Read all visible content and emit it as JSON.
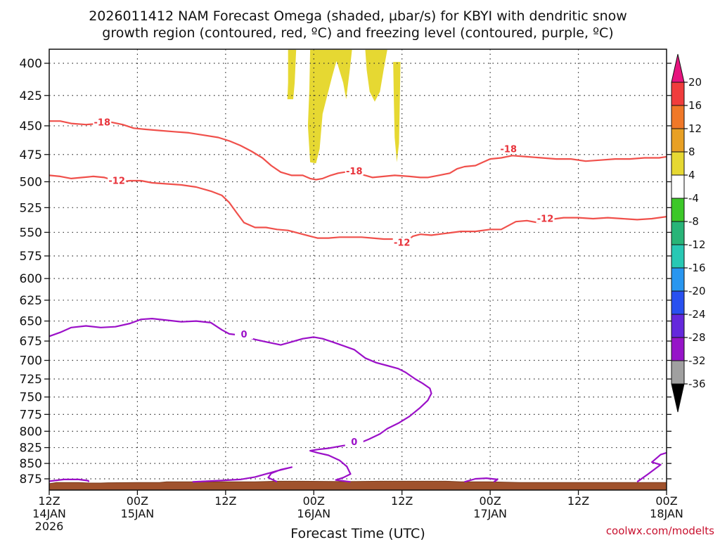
{
  "chart_data": {
    "type": "time-height cross-section",
    "title_line1": "2026011412 NAM Forecast Omega (shaded, µbar/s) for KBYI with dendritic snow",
    "title_line2": "growth region (contoured, red, ºC) and freezing level (contoured, purple, ºC)",
    "xlabel": "Forecast Time (UTC)",
    "credit": "coolwx.com/modelts",
    "x_range_hours": [
      0,
      84
    ],
    "y_range_mb": [
      880,
      390
    ],
    "y_ticks": [
      400,
      425,
      450,
      475,
      500,
      525,
      550,
      575,
      600,
      625,
      650,
      675,
      700,
      725,
      750,
      775,
      800,
      825,
      850,
      875
    ],
    "x_ticks": [
      {
        "hour": 0,
        "line1": "12Z",
        "line2": "14JAN",
        "line3": "2026"
      },
      {
        "hour": 12,
        "line1": "00Z",
        "line2": "15JAN",
        "line3": ""
      },
      {
        "hour": 24,
        "line1": "12Z",
        "line2": "",
        "line3": ""
      },
      {
        "hour": 36,
        "line1": "00Z",
        "line2": "16JAN",
        "line3": ""
      },
      {
        "hour": 48,
        "line1": "12Z",
        "line2": "",
        "line3": ""
      },
      {
        "hour": 60,
        "line1": "00Z",
        "line2": "17JAN",
        "line3": ""
      },
      {
        "hour": 72,
        "line1": "12Z",
        "line2": "",
        "line3": ""
      },
      {
        "hour": 84,
        "line1": "00Z",
        "line2": "18JAN",
        "line3": ""
      }
    ],
    "colorbar": {
      "labels": [
        "20",
        "16",
        "12",
        "8",
        "4",
        "-4",
        "-8",
        "-12",
        "-16",
        "-20",
        "-24",
        "-28",
        "-32",
        "-36"
      ],
      "colors": [
        "#f03c3c",
        "#f07828",
        "#e8a024",
        "#e6d832",
        "#ffffff",
        "#3cc828",
        "#28b478",
        "#28c8b4",
        "#2896f0",
        "#2850f0",
        "#6428dc",
        "#9614c8",
        "#a0a0a0"
      ],
      "top_color": "#e6147e",
      "bottom_color": "#000000"
    },
    "contours": [
      {
        "label": "-18",
        "color": "#f0504b",
        "label_points": [
          [
            7.2,
            448
          ],
          [
            41.5,
            491
          ],
          [
            62.5,
            471
          ]
        ],
        "points": [
          [
            0,
            446
          ],
          [
            1.5,
            446
          ],
          [
            3,
            448
          ],
          [
            5,
            449
          ],
          [
            7,
            448
          ],
          [
            8.5,
            447
          ],
          [
            10,
            449
          ],
          [
            11.5,
            452
          ],
          [
            13,
            453
          ],
          [
            15,
            454
          ],
          [
            17,
            455
          ],
          [
            19,
            456
          ],
          [
            21,
            458
          ],
          [
            23,
            460
          ],
          [
            24.5,
            463
          ],
          [
            26,
            467
          ],
          [
            27.5,
            472
          ],
          [
            29,
            478
          ],
          [
            30.2,
            485
          ],
          [
            31.5,
            491
          ],
          [
            33,
            494
          ],
          [
            34.5,
            494
          ],
          [
            35.5,
            497
          ],
          [
            36.3,
            498
          ],
          [
            37.2,
            497
          ],
          [
            38.3,
            494
          ],
          [
            39.3,
            492
          ],
          [
            40.2,
            491
          ],
          [
            41.5,
            492
          ],
          [
            43,
            494
          ],
          [
            44,
            496
          ],
          [
            45.5,
            495
          ],
          [
            47,
            494
          ],
          [
            49,
            495
          ],
          [
            50.5,
            496
          ],
          [
            51.5,
            496
          ],
          [
            53,
            494
          ],
          [
            54.5,
            492
          ],
          [
            55.5,
            488
          ],
          [
            56.5,
            486
          ],
          [
            58,
            485
          ],
          [
            59,
            482
          ],
          [
            60,
            479
          ],
          [
            61.5,
            478
          ],
          [
            63,
            476
          ],
          [
            65,
            477
          ],
          [
            67,
            478
          ],
          [
            69,
            479
          ],
          [
            71,
            479
          ],
          [
            73,
            481
          ],
          [
            75,
            480
          ],
          [
            77,
            479
          ],
          [
            79,
            479
          ],
          [
            81,
            478
          ],
          [
            83,
            478
          ],
          [
            84,
            477
          ]
        ]
      },
      {
        "label": "-12",
        "color": "#f0504b",
        "label_points": [
          [
            9.2,
            500
          ],
          [
            48,
            562
          ],
          [
            67.5,
            537
          ]
        ],
        "points": [
          [
            0,
            494
          ],
          [
            1.5,
            495
          ],
          [
            3,
            497
          ],
          [
            4.5,
            496
          ],
          [
            6,
            495
          ],
          [
            7.5,
            496
          ],
          [
            8.5,
            498
          ],
          [
            9.8,
            500
          ],
          [
            11,
            499
          ],
          [
            12.5,
            499
          ],
          [
            14,
            501
          ],
          [
            16,
            502
          ],
          [
            18,
            503
          ],
          [
            20,
            505
          ],
          [
            22,
            509
          ],
          [
            23.5,
            513
          ],
          [
            24.5,
            520
          ],
          [
            25.5,
            530
          ],
          [
            26.5,
            540
          ],
          [
            28,
            545
          ],
          [
            29.5,
            545
          ],
          [
            31,
            547
          ],
          [
            32.5,
            548
          ],
          [
            34,
            551
          ],
          [
            35.5,
            554
          ],
          [
            36.5,
            556
          ],
          [
            38,
            556
          ],
          [
            39.5,
            555
          ],
          [
            41,
            555
          ],
          [
            42.5,
            555
          ],
          [
            44,
            556
          ],
          [
            45.5,
            557
          ],
          [
            47,
            557
          ],
          [
            48,
            558
          ],
          [
            48.5,
            560
          ],
          [
            49.5,
            554
          ],
          [
            50.5,
            552
          ],
          [
            52,
            553
          ],
          [
            54,
            551
          ],
          [
            56,
            549
          ],
          [
            58,
            549
          ],
          [
            60,
            547
          ],
          [
            61.5,
            547
          ],
          [
            63.5,
            539
          ],
          [
            65,
            538
          ],
          [
            66.5,
            540
          ],
          [
            68,
            537
          ],
          [
            70,
            535
          ],
          [
            72,
            535
          ],
          [
            74,
            536
          ],
          [
            76,
            535
          ],
          [
            78,
            536
          ],
          [
            80,
            537
          ],
          [
            82,
            536
          ],
          [
            84,
            534
          ]
        ]
      },
      {
        "label": "0",
        "color": "#9b10c8",
        "label_points": [
          [
            26.5,
            668
          ],
          [
            41.5,
            818
          ]
        ],
        "points": [
          [
            0,
            669
          ],
          [
            1.5,
            664
          ],
          [
            3,
            658
          ],
          [
            5,
            656
          ],
          [
            7,
            658
          ],
          [
            9,
            657
          ],
          [
            11,
            653
          ],
          [
            12.5,
            648
          ],
          [
            14,
            647
          ],
          [
            16,
            649
          ],
          [
            18,
            651
          ],
          [
            20,
            650
          ],
          [
            22,
            652
          ],
          [
            23.5,
            661
          ],
          [
            24.5,
            666
          ],
          [
            25.5,
            667
          ],
          [
            26.5,
            669
          ],
          [
            28,
            673
          ],
          [
            30,
            677
          ],
          [
            31.5,
            680
          ],
          [
            33,
            676
          ],
          [
            34.5,
            672
          ],
          [
            36,
            670
          ],
          [
            37.2,
            672
          ],
          [
            38.5,
            676
          ],
          [
            40,
            681
          ],
          [
            41.5,
            686
          ],
          [
            43,
            697
          ],
          [
            44.5,
            703
          ],
          [
            46,
            707
          ],
          [
            47.5,
            711
          ],
          [
            48.5,
            716
          ],
          [
            49.8,
            725
          ],
          [
            50.8,
            731
          ],
          [
            51.8,
            738
          ],
          [
            52,
            745
          ],
          [
            51.5,
            755
          ],
          [
            50.5,
            765
          ],
          [
            49,
            778
          ],
          [
            47.5,
            788
          ],
          [
            46,
            796
          ],
          [
            45,
            804
          ],
          [
            43.5,
            812
          ],
          [
            42,
            819
          ],
          [
            40,
            822
          ],
          [
            38,
            826
          ],
          [
            36.5,
            828
          ],
          [
            35.5,
            830
          ],
          [
            36.5,
            833
          ],
          [
            38,
            837
          ],
          [
            39.5,
            845
          ],
          [
            40.5,
            855
          ],
          [
            41,
            867
          ],
          [
            40,
            873
          ],
          [
            39,
            877
          ],
          [
            41,
            880
          ]
        ]
      },
      {
        "label": "",
        "color": "#9b10c8",
        "label_points": [],
        "points": [
          [
            0,
            879
          ],
          [
            2,
            876
          ],
          [
            4,
            876
          ],
          [
            5.3,
            878
          ],
          [
            5.4,
            880
          ]
        ]
      },
      {
        "label": "",
        "color": "#9b10c8",
        "label_points": [],
        "points": [
          [
            19.5,
            880
          ],
          [
            23,
            878
          ],
          [
            26,
            876
          ],
          [
            28,
            872
          ],
          [
            29.5,
            867
          ],
          [
            31,
            862
          ],
          [
            33,
            856
          ],
          [
            31.5,
            860
          ],
          [
            30.2,
            866
          ],
          [
            29.8,
            873
          ],
          [
            31,
            880
          ]
        ]
      },
      {
        "label": "",
        "color": "#9b10c8",
        "label_points": [],
        "points": [
          [
            56.5,
            880
          ],
          [
            58,
            875
          ],
          [
            59.5,
            874
          ],
          [
            61,
            876
          ],
          [
            60.5,
            880
          ]
        ]
      },
      {
        "label": "",
        "color": "#9b10c8",
        "label_points": [],
        "points": [
          [
            80,
            880
          ],
          [
            81.5,
            867
          ],
          [
            83.2,
            852
          ],
          [
            82,
            848
          ],
          [
            83.2,
            836
          ],
          [
            84,
            833
          ]
        ]
      }
    ],
    "omega_shaded": [
      {
        "range": "4 to 8",
        "color": "#e6d832",
        "polygons": [
          [
            [
              32.5,
              390
            ],
            [
              33.6,
              390
            ],
            [
              33.4,
              415
            ],
            [
              33.2,
              428
            ],
            [
              32.4,
              428
            ],
            [
              32.5,
              415
            ]
          ],
          [
            [
              35.5,
              390
            ],
            [
              39.5,
              390
            ],
            [
              38.5,
              410
            ],
            [
              37.2,
              440
            ],
            [
              36.8,
              470
            ],
            [
              36.3,
              483
            ],
            [
              35.5,
              482
            ],
            [
              35.2,
              450
            ],
            [
              35.4,
              420
            ]
          ],
          [
            [
              38.5,
              390
            ],
            [
              41.2,
              390
            ],
            [
              40.9,
              405
            ],
            [
              40.4,
              428
            ],
            [
              40,
              415
            ],
            [
              39.2,
              400
            ]
          ],
          [
            [
              43,
              390
            ],
            [
              46,
              390
            ],
            [
              45.5,
              405
            ],
            [
              45,
              422
            ],
            [
              44.3,
              430
            ],
            [
              43.6,
              422
            ],
            [
              43.2,
              405
            ]
          ],
          [
            [
              46.8,
              399
            ],
            [
              47.8,
              399
            ],
            [
              47.7,
              430
            ],
            [
              47.6,
              465
            ],
            [
              47.3,
              482
            ],
            [
              47,
              460
            ],
            [
              46.9,
              430
            ]
          ]
        ]
      }
    ],
    "terrain": {
      "color": "#a0522d",
      "points": [
        [
          0,
          883
        ],
        [
          1,
          881
        ],
        [
          4,
          881
        ],
        [
          5.5,
          882
        ],
        [
          7,
          882
        ],
        [
          8,
          881.5
        ],
        [
          12,
          881
        ],
        [
          15,
          881
        ],
        [
          16,
          880
        ],
        [
          20,
          880
        ],
        [
          25,
          880
        ],
        [
          28,
          880
        ],
        [
          31,
          879
        ],
        [
          34,
          879
        ],
        [
          40,
          879.5
        ],
        [
          45,
          879
        ],
        [
          50,
          879
        ],
        [
          54,
          879
        ],
        [
          56,
          880
        ],
        [
          60,
          880
        ],
        [
          64,
          881
        ],
        [
          70,
          881
        ],
        [
          76,
          881
        ],
        [
          80,
          881
        ],
        [
          84,
          881
        ]
      ]
    }
  }
}
